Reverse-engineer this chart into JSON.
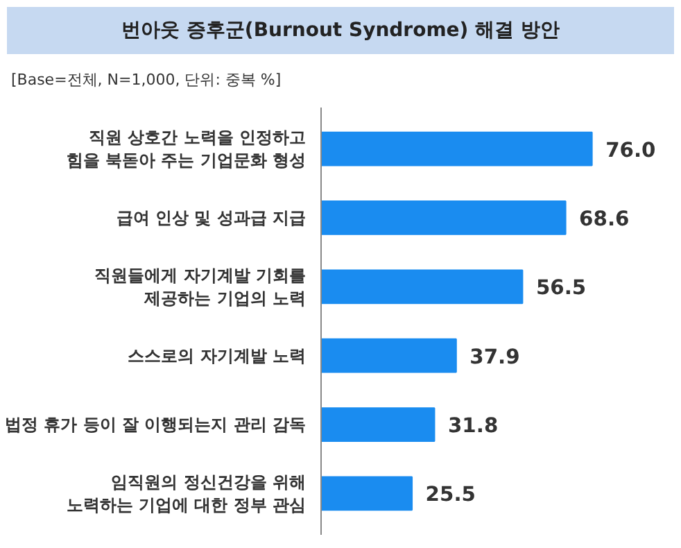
{
  "chart_data": {
    "type": "bar",
    "orientation": "horizontal",
    "title": "번아웃 증후군(Burnout Syndrome) 해결 방안",
    "subtitle": "[Base=전체, N=1,000, 단위: 중복 %]",
    "categories": [
      "직원 상호간 노력을 인정하고\n힘을 북돋아 주는 기업문화 형성",
      "급여 인상 및 성과급 지급",
      "직원들에게 자기계발 기회를\n제공하는 기업의 노력",
      "스스로의 자기계발 노력",
      "법정 휴가 등이 잘 이행되는지 관리 감독",
      "임직원의 정신건강을 위해\n노력하는 기업에 대한 정부 관심"
    ],
    "values": [
      76.0,
      68.6,
      56.5,
      37.9,
      31.8,
      25.5
    ],
    "value_labels": [
      "76.0",
      "68.6",
      "56.5",
      "37.9",
      "31.8",
      "25.5"
    ],
    "color": "#1a8cf0",
    "grid": false
  }
}
